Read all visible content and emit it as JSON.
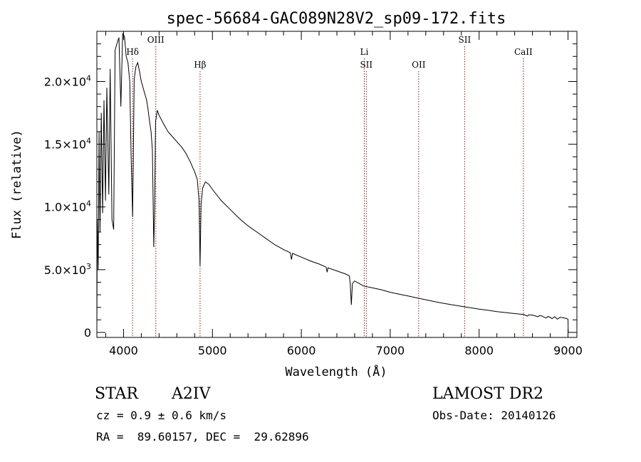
{
  "chart_data": {
    "type": "line",
    "title": "spec-56684-GAC089N28V2_sp09-172.fits",
    "xlabel": "Wavelength (Å)",
    "ylabel": "Flux (relative)",
    "xlim": [
      3700,
      9100
    ],
    "ylim": [
      -400,
      24000
    ],
    "x_ticks": [
      4000,
      5000,
      6000,
      7000,
      8000,
      9000
    ],
    "x_tick_labels": [
      "4000",
      "5000",
      "6000",
      "7000",
      "8000",
      "9000"
    ],
    "y_ticks": [
      0,
      5000,
      10000,
      15000,
      20000
    ],
    "y_tick_labels": [
      {
        "mant": "0",
        "exp": ""
      },
      {
        "mant": "5.0×10",
        "exp": "3"
      },
      {
        "mant": "1.0×10",
        "exp": "4"
      },
      {
        "mant": "1.5×10",
        "exp": "4"
      },
      {
        "mant": "2.0×10",
        "exp": "4"
      }
    ],
    "line_color": "#000000",
    "marker_color": "#8b1a1a",
    "grid": false,
    "lines": [
      {
        "label": "Hδ",
        "wavelength": 4102,
        "row": 1
      },
      {
        "label": "OIII",
        "wavelength": 4363,
        "row": 0
      },
      {
        "label": "Hβ",
        "wavelength": 4861,
        "row": 2
      },
      {
        "label": "Li",
        "wavelength": 6708,
        "row": 1
      },
      {
        "label": "SII",
        "wavelength": 6731,
        "row": 2
      },
      {
        "label": "OII",
        "wavelength": 7320,
        "row": 2
      },
      {
        "label": "SII",
        "wavelength": 7837,
        "row": 0
      },
      {
        "label": "CaII",
        "wavelength": 8498,
        "row": 1
      }
    ],
    "series": [
      {
        "points": [
          [
            3700,
            300
          ],
          [
            3705,
            9000
          ],
          [
            3715,
            5000
          ],
          [
            3725,
            16000
          ],
          [
            3735,
            8000
          ],
          [
            3750,
            17500
          ],
          [
            3765,
            9500
          ],
          [
            3780,
            18500
          ],
          [
            3797,
            10500
          ],
          [
            3812,
            19500
          ],
          [
            3835,
            11000
          ],
          [
            3850,
            21000
          ],
          [
            3870,
            9000
          ],
          [
            3889,
            8200
          ],
          [
            3905,
            22500
          ],
          [
            3925,
            23000
          ],
          [
            3948,
            23500
          ],
          [
            3970,
            18000
          ],
          [
            3990,
            23800
          ],
          [
            4010,
            23600
          ],
          [
            4030,
            22000
          ],
          [
            4050,
            21500
          ],
          [
            4070,
            20000
          ],
          [
            4085,
            14000
          ],
          [
            4102,
            9200
          ],
          [
            4120,
            20200
          ],
          [
            4140,
            21200
          ],
          [
            4160,
            21500
          ],
          [
            4180,
            20800
          ],
          [
            4200,
            20000
          ],
          [
            4220,
            19500
          ],
          [
            4240,
            19000
          ],
          [
            4260,
            18500
          ],
          [
            4275,
            17800
          ],
          [
            4290,
            17000
          ],
          [
            4310,
            16000
          ],
          [
            4325,
            14500
          ],
          [
            4340,
            6800
          ],
          [
            4350,
            10000
          ],
          [
            4360,
            16800
          ],
          [
            4380,
            17700
          ],
          [
            4400,
            17300
          ],
          [
            4430,
            16900
          ],
          [
            4460,
            16500
          ],
          [
            4500,
            16000
          ],
          [
            4550,
            15600
          ],
          [
            4600,
            15200
          ],
          [
            4650,
            14800
          ],
          [
            4700,
            14300
          ],
          [
            4750,
            13600
          ],
          [
            4800,
            12800
          ],
          [
            4830,
            12200
          ],
          [
            4850,
            10500
          ],
          [
            4861,
            5300
          ],
          [
            4872,
            10200
          ],
          [
            4890,
            11500
          ],
          [
            4920,
            12000
          ],
          [
            4960,
            11800
          ],
          [
            5000,
            11400
          ],
          [
            5100,
            10500
          ],
          [
            5200,
            9800
          ],
          [
            5300,
            9100
          ],
          [
            5400,
            8500
          ],
          [
            5500,
            8000
          ],
          [
            5600,
            7500
          ],
          [
            5700,
            7000
          ],
          [
            5800,
            6600
          ],
          [
            5875,
            6350
          ],
          [
            5890,
            5800
          ],
          [
            5900,
            6300
          ],
          [
            6000,
            6000
          ],
          [
            6100,
            5700
          ],
          [
            6200,
            5450
          ],
          [
            6280,
            5200
          ],
          [
            6290,
            4800
          ],
          [
            6300,
            5150
          ],
          [
            6400,
            4900
          ],
          [
            6500,
            4650
          ],
          [
            6540,
            4500
          ],
          [
            6550,
            3900
          ],
          [
            6563,
            2200
          ],
          [
            6575,
            3900
          ],
          [
            6600,
            4100
          ],
          [
            6650,
            3900
          ],
          [
            6700,
            3700
          ],
          [
            6800,
            3550
          ],
          [
            6900,
            3400
          ],
          [
            7000,
            3200
          ],
          [
            7100,
            3050
          ],
          [
            7200,
            2900
          ],
          [
            7300,
            2750
          ],
          [
            7400,
            2600
          ],
          [
            7500,
            2450
          ],
          [
            7600,
            2320
          ],
          [
            7700,
            2200
          ],
          [
            7800,
            2080
          ],
          [
            7900,
            1970
          ],
          [
            8000,
            1860
          ],
          [
            8100,
            1760
          ],
          [
            8200,
            1660
          ],
          [
            8300,
            1580
          ],
          [
            8400,
            1500
          ],
          [
            8500,
            1430
          ],
          [
            8542,
            1300
          ],
          [
            8560,
            1400
          ],
          [
            8600,
            1380
          ],
          [
            8662,
            1250
          ],
          [
            8680,
            1340
          ],
          [
            8700,
            1320
          ],
          [
            8750,
            1150
          ],
          [
            8780,
            1280
          ],
          [
            8820,
            1100
          ],
          [
            8850,
            1250
          ],
          [
            8880,
            1050
          ],
          [
            8910,
            1200
          ],
          [
            8940,
            1180
          ],
          [
            8980,
            1120
          ],
          [
            9000,
            1050
          ],
          [
            9002,
            0
          ]
        ]
      }
    ]
  },
  "info": {
    "object_type": "STAR",
    "spectral_class": "A2IV",
    "survey": "LAMOST DR2",
    "cz": "cz = 0.9 ± 0.6 km/s",
    "obs_date": "Obs-Date: 20140126",
    "coords": "RA =  89.60157, DEC =  29.62896"
  }
}
